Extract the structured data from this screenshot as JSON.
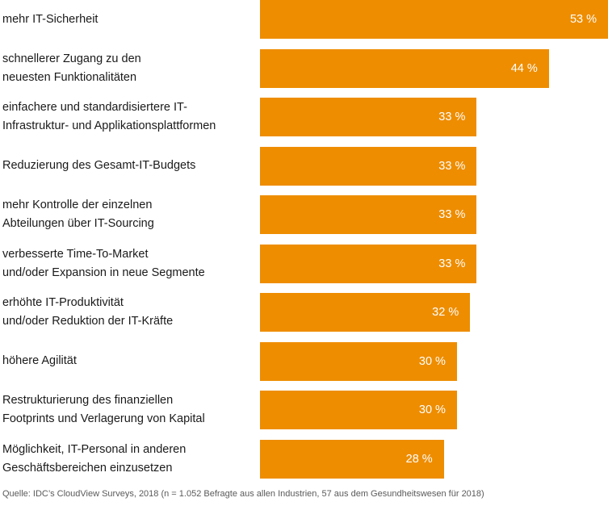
{
  "chart_data": {
    "type": "bar",
    "orientation": "horizontal",
    "categories": [
      "mehr IT-Sicherheit",
      "schnellerer Zugang zu den\nneuesten Funktionalitäten",
      "einfachere und standardisiertere IT-\nInfrastruktur- und Applikationsplattformen",
      "Reduzierung des Gesamt-IT-Budgets",
      "mehr Kontrolle der einzelnen\nAbteilungen über IT-Sourcing",
      "verbesserte Time-To-Market\nund/oder Expansion in neue Segmente",
      "erhöhte IT-Produktivität\nund/oder Reduktion der IT-Kräfte",
      "höhere Agilität",
      "Restrukturierung des finanziellen\nFootprints und Verlagerung von Kapital",
      "Möglichkeit, IT-Personal in anderen\nGeschäftsbereichen einzusetzen"
    ],
    "values": [
      53,
      44,
      33,
      33,
      33,
      33,
      32,
      30,
      30,
      28
    ],
    "value_labels": [
      "53 %",
      "44 %",
      "33 %",
      "33 %",
      "33 %",
      "33 %",
      "32 %",
      "30 %",
      "30 %",
      "28 %"
    ],
    "unit": "%",
    "xlim": [
      0,
      53
    ],
    "bar_color": "#ee8d00",
    "grid": false,
    "title": "",
    "xlabel": "",
    "ylabel": ""
  },
  "source": "Quelle: IDC’s CloudView Surveys, 2018 (n = 1.052 Befragte aus allen Industrien, 57 aus dem Gesundheitswesen für 2018)"
}
